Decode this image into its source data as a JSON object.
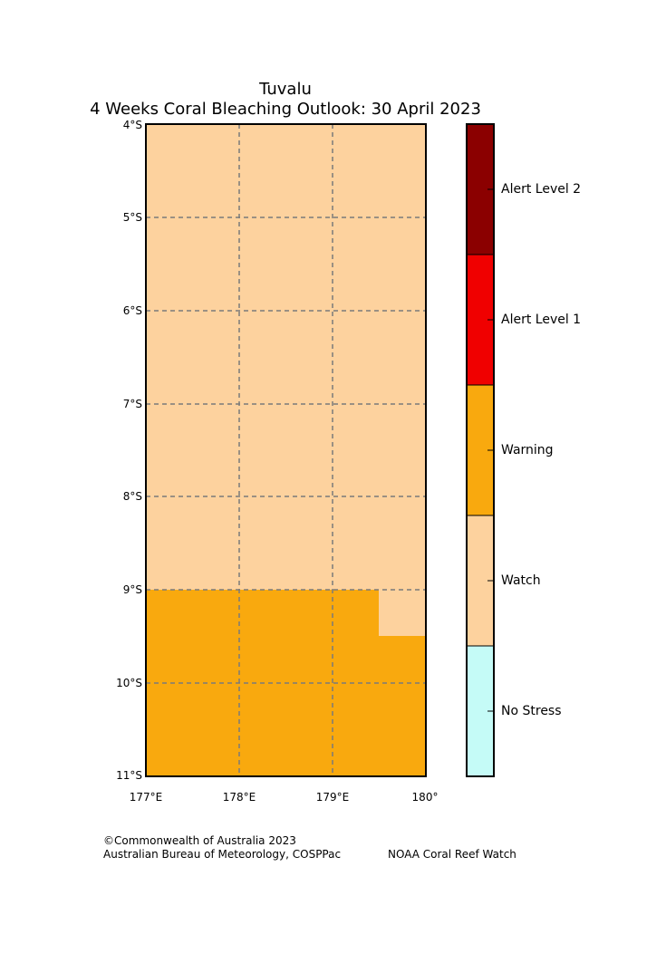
{
  "title": {
    "line1": "Tuvalu",
    "line2": "4 Weeks Coral Bleaching Outlook: 30 April 2023"
  },
  "map": {
    "lat_labels": [
      "4°S",
      "5°S",
      "6°S",
      "7°S",
      "8°S",
      "9°S",
      "10°S",
      "11°S"
    ],
    "lon_labels": [
      "177°E",
      "178°E",
      "179°E",
      "180°"
    ],
    "regions": [
      {
        "level": "Watch",
        "description": "4°S to 9°S, 177°E to 180°"
      },
      {
        "level": "Warning",
        "description": "9°S to 11°S, 177°E to 179.5°E"
      },
      {
        "level": "Watch",
        "description": "9°S to 9.5°S, 179.5°E to 180°"
      },
      {
        "level": "Warning",
        "description": "9.5°S to 11°S, 179.5°E to 180°"
      }
    ]
  },
  "legend": {
    "levels": [
      {
        "label": "Alert Level 2",
        "color": "#8b0000"
      },
      {
        "label": "Alert Level 1",
        "color": "#f00000"
      },
      {
        "label": "Warning",
        "color": "#f9a90e"
      },
      {
        "label": "Watch",
        "color": "#fdd29e"
      },
      {
        "label": "No Stress",
        "color": "#c5fbf7"
      }
    ]
  },
  "credits": {
    "line1": "©Commonwealth of Australia 2023",
    "line2": "Australian Bureau of Meteorology, COSPPac",
    "noaa": "NOAA Coral Reef Watch"
  }
}
